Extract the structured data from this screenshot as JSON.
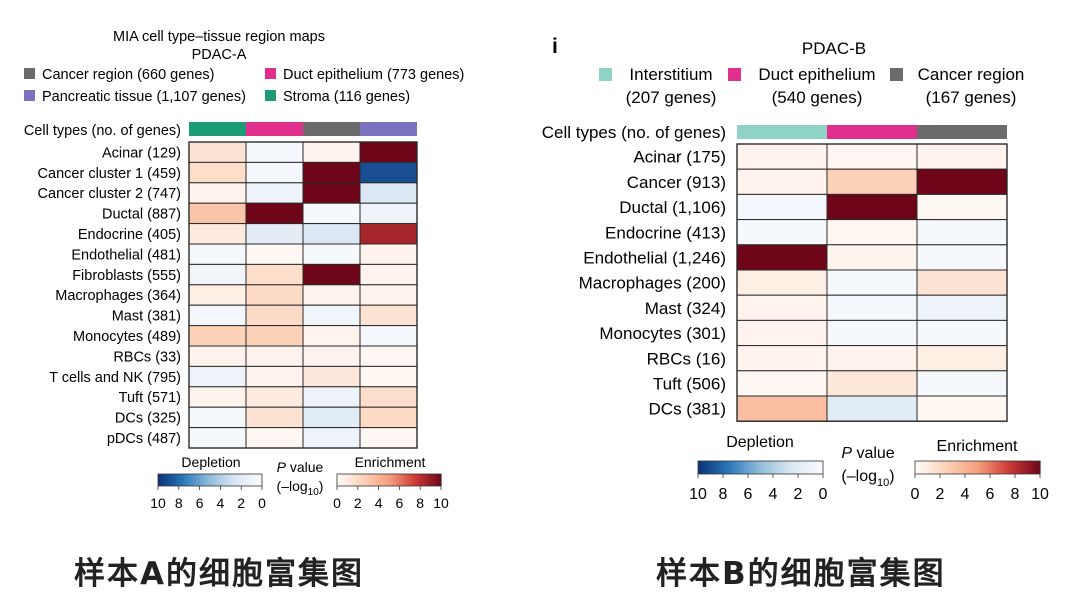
{
  "chart_data": [
    {
      "type": "heatmap",
      "title": "MIA cell type–tissue region maps",
      "subtitle": "PDAC-A",
      "row_header": "Cell types (no. of genes)",
      "columns": [
        {
          "key": "stroma",
          "color": "#1e9c78"
        },
        {
          "key": "duct",
          "color": "#e02f8c"
        },
        {
          "key": "cancer",
          "color": "#6b6b6b"
        },
        {
          "key": "pancreatic",
          "color": "#7b72bf"
        }
      ],
      "legend": [
        {
          "label": "Cancer region (660 genes)",
          "color": "#6b6b6b"
        },
        {
          "label": "Duct epithelium (773 genes)",
          "color": "#e02f8c"
        },
        {
          "label": "Pancreatic tissue (1,107 genes)",
          "color": "#7b72bf"
        },
        {
          "label": "Stroma (116 genes)",
          "color": "#1e9c78"
        }
      ],
      "rows": [
        "Acinar (129)",
        "Cancer cluster 1 (459)",
        "Cancer cluster 2 (747)",
        "Ductal (887)",
        "Endocrine (405)",
        "Endothelial (481)",
        "Fibroblasts (555)",
        "Macrophages (364)",
        "Mast (381)",
        "Monocytes (489)",
        "RBCs (33)",
        "T cells and NK (795)",
        "Tuft (571)",
        "DCs (325)",
        "pDCs (487)"
      ],
      "values": [
        [
          1.5,
          -0.5,
          0.5,
          10
        ],
        [
          1.8,
          -0.5,
          10,
          -9
        ],
        [
          0.5,
          -1,
          10,
          -2.5
        ],
        [
          3.2,
          10,
          -0.3,
          -1
        ],
        [
          1,
          -1.8,
          -2.5,
          8.5
        ],
        [
          -0.5,
          0.3,
          -0.3,
          0.5
        ],
        [
          -0.8,
          1.8,
          10,
          0.5
        ],
        [
          0.8,
          2,
          0.5,
          0.5
        ],
        [
          -0.5,
          2,
          -0.8,
          1.5
        ],
        [
          2.5,
          2.5,
          0.5,
          -0.5
        ],
        [
          0.5,
          0.5,
          0.5,
          0.3
        ],
        [
          -1,
          0.5,
          1.2,
          0.3
        ],
        [
          0.5,
          1,
          -1,
          1.8
        ],
        [
          -0.3,
          1.5,
          -2,
          2
        ],
        [
          -0.3,
          0.3,
          -1,
          0.3
        ]
      ],
      "colorbar": {
        "depletion_label": "Depletion",
        "enrichment_label": "Enrichment",
        "p_label": "P",
        "value_label": "value",
        "log_label": "(–log",
        "log_sub": "10",
        "log_close": ")",
        "depletion_ticks": [
          "10",
          "8",
          "6",
          "4",
          "2",
          "0"
        ],
        "enrichment_ticks": [
          "0",
          "2",
          "4",
          "6",
          "8",
          "10"
        ],
        "range": [
          0,
          10
        ]
      },
      "caption": "样本A的细胞富集图"
    },
    {
      "type": "heatmap",
      "panel_label": "i",
      "title": "PDAC-B",
      "row_header": "Cell types (no. of genes)",
      "columns": [
        {
          "key": "interstitium",
          "color": "#8fd3c6"
        },
        {
          "key": "duct",
          "color": "#e02f8c"
        },
        {
          "key": "cancer",
          "color": "#6b6b6b"
        }
      ],
      "legend": [
        {
          "line1": "Interstitium",
          "line2": "(207 genes)",
          "color": "#8fd3c6"
        },
        {
          "line1": "Duct epithelium",
          "line2": "(540 genes)",
          "color": "#e02f8c"
        },
        {
          "line1": "Cancer region",
          "line2": "(167 genes)",
          "color": "#6b6b6b"
        }
      ],
      "rows": [
        "Acinar (175)",
        "Cancer (913)",
        "Ductal (1,106)",
        "Endocrine (413)",
        "Endothelial (1,246)",
        "Macrophages (200)",
        "Mast (324)",
        "Monocytes (301)",
        "RBCs (16)",
        "Tuft (506)",
        "DCs (381)"
      ],
      "values": [
        [
          0.5,
          0.3,
          0.5
        ],
        [
          0.5,
          2.5,
          10
        ],
        [
          -0.5,
          10,
          0.3
        ],
        [
          -0.3,
          0.3,
          -0.5
        ],
        [
          10,
          0.5,
          -0.3
        ],
        [
          0.8,
          -0.3,
          1.5
        ],
        [
          0.5,
          -0.5,
          -1
        ],
        [
          0.5,
          -0.3,
          -0.3
        ],
        [
          0.5,
          0.5,
          0.8
        ],
        [
          0.3,
          1.2,
          -0.5
        ],
        [
          3.5,
          -2,
          0.3
        ]
      ],
      "colorbar": {
        "depletion_label": "Depletion",
        "enrichment_label": "Enrichment",
        "p_label": "P",
        "value_label": "value",
        "log_label": "(–log",
        "log_sub": "10",
        "log_close": ")",
        "depletion_ticks": [
          "10",
          "8",
          "6",
          "4",
          "2",
          "0"
        ],
        "enrichment_ticks": [
          "0",
          "2",
          "4",
          "6",
          "8",
          "10"
        ],
        "range": [
          0,
          10
        ]
      },
      "caption": "样本B的细胞富集图"
    }
  ]
}
